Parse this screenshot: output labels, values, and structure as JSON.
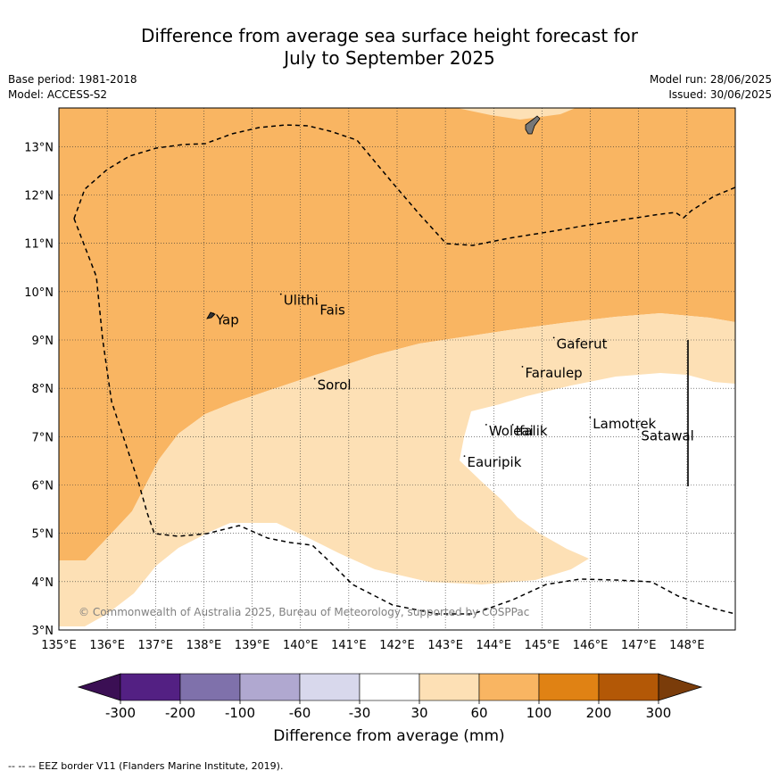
{
  "title": {
    "line1": "Difference from average sea surface height forecast for",
    "line2": "July to September 2025"
  },
  "meta": {
    "base_period": "Base period: 1981-2018",
    "model": "Model: ACCESS-S2",
    "model_run": "Model run: 28/06/2025",
    "issued": "Issued: 30/06/2025"
  },
  "map": {
    "lon_range": [
      135,
      149
    ],
    "lat_range": [
      3,
      13.8
    ],
    "lon_ticks": [
      "135°E",
      "136°E",
      "137°E",
      "138°E",
      "139°E",
      "140°E",
      "141°E",
      "142°E",
      "143°E",
      "144°E",
      "145°E",
      "146°E",
      "147°E",
      "148°E"
    ],
    "lat_ticks": [
      "3°N",
      "4°N",
      "5°N",
      "6°N",
      "7°N",
      "8°N",
      "9°N",
      "10°N",
      "11°N",
      "12°N",
      "13°N"
    ],
    "copyright": "© Commonwealth of Australia 2025, Bureau of Meteorology, supported by COSPPac",
    "places": [
      {
        "name": "Yap",
        "lon": 138.25,
        "lat": 9.4
      },
      {
        "name": "Ulithi",
        "lon": 139.65,
        "lat": 9.8
      },
      {
        "name": "Fais",
        "lon": 140.4,
        "lat": 9.6
      },
      {
        "name": "Sorol",
        "lon": 140.35,
        "lat": 8.05
      },
      {
        "name": "Gaferut",
        "lon": 145.3,
        "lat": 8.9
      },
      {
        "name": "Faraulep",
        "lon": 144.65,
        "lat": 8.3
      },
      {
        "name": "Woleai",
        "lon": 143.9,
        "lat": 7.1
      },
      {
        "name": "Ifalik",
        "lon": 144.45,
        "lat": 7.1
      },
      {
        "name": "Lamotrek",
        "lon": 146.05,
        "lat": 7.25
      },
      {
        "name": "Satawal",
        "lon": 147.05,
        "lat": 7.0
      },
      {
        "name": "Eauripik",
        "lon": 143.45,
        "lat": 6.45
      }
    ]
  },
  "colorbar": {
    "title": "Difference from average (mm)",
    "tick_labels": [
      "-300",
      "-200",
      "-100",
      "-60",
      "-30",
      "30",
      "60",
      "100",
      "200",
      "300"
    ],
    "colors": [
      "#3b0f54",
      "#532083",
      "#7f71ab",
      "#b0a8d0",
      "#d8d8ec",
      "#ffffff",
      "#fde0b5",
      "#f9b562",
      "#e08214",
      "#b35806",
      "#7a3c0a"
    ]
  },
  "footnote": "--  --  -- EEZ border V11 (Flanders Marine Institute, 2019)."
}
